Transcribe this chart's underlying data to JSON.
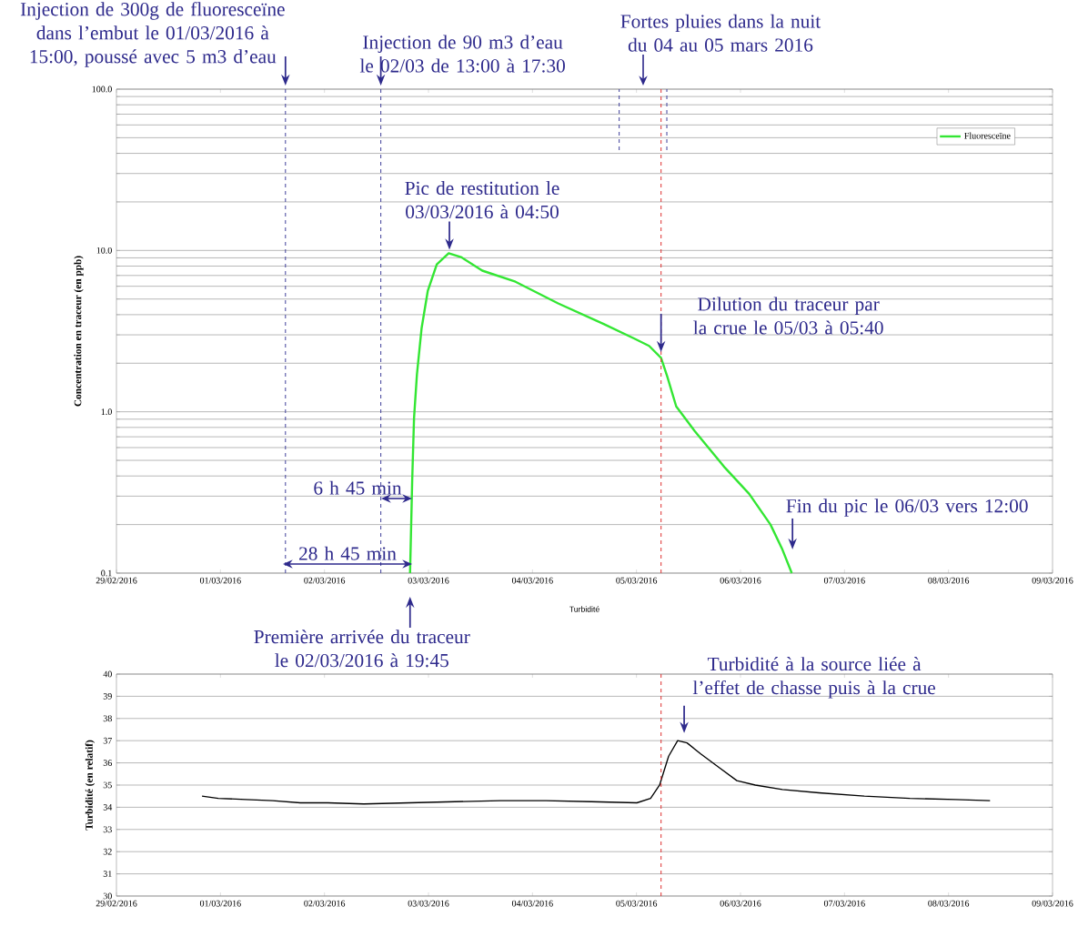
{
  "chart_data": [
    {
      "type": "line",
      "log": "y",
      "xlim": [
        "2016-02-29",
        "2016-03-09"
      ],
      "xticks": [
        {
          "value": "2016-02-29",
          "label": "29/02/2016"
        },
        {
          "value": "2016-03-01",
          "label": "01/03/2016"
        },
        {
          "value": "2016-03-02",
          "label": "02/03/2016"
        },
        {
          "value": "2016-03-03",
          "label": "03/03/2016"
        },
        {
          "value": "2016-03-04",
          "label": "04/03/2016"
        },
        {
          "value": "2016-03-05",
          "label": "05/03/2016"
        },
        {
          "value": "2016-03-06",
          "label": "06/03/2016"
        },
        {
          "value": "2016-03-07",
          "label": "07/03/2016"
        },
        {
          "value": "2016-03-08",
          "label": "08/03/2016"
        },
        {
          "value": "2016-03-09",
          "label": "09/03/2016"
        }
      ],
      "ylim": [
        0.1,
        100
      ],
      "yticks": [
        {
          "value": 0.1,
          "label": "0.1"
        },
        {
          "value": 1,
          "label": "1.0"
        },
        {
          "value": 10,
          "label": "10.0"
        },
        {
          "value": 100,
          "label": "100.0"
        }
      ],
      "ylabel": "Concentration en traceur (en ppb)",
      "grid": "y",
      "legend": "top right",
      "series": [
        {
          "name": "Fluoresceïne",
          "color": "#33e633",
          "x": [
            "2016-03-02T19:45",
            "2016-03-02T20:15",
            "2016-03-02T20:40",
            "2016-03-02T21:20",
            "2016-03-02T22:25",
            "2016-03-02T23:50",
            "2016-03-03T01:55",
            "2016-03-03T04:40",
            "2016-03-03T07:30",
            "2016-03-03T12:25",
            "2016-03-03T20:05",
            "2016-03-04T05:55",
            "2016-03-04T16:25",
            "2016-03-04T23:25",
            "2016-03-05T02:55",
            "2016-03-05T05:40",
            "2016-03-05T07:05",
            "2016-03-05T09:10",
            "2016-03-05T13:25",
            "2016-03-05T20:25",
            "2016-03-06T02:00",
            "2016-03-06T06:55",
            "2016-03-06T09:40",
            "2016-03-06T11:50"
          ],
          "values": [
            0.1,
            0.38,
            0.91,
            1.7,
            3.3,
            5.6,
            8.2,
            9.6,
            9.1,
            7.5,
            6.4,
            4.7,
            3.5,
            2.85,
            2.56,
            2.16,
            1.66,
            1.08,
            0.76,
            0.45,
            0.31,
            0.2,
            0.14,
            0.1
          ]
        }
      ],
      "ref_lines": [
        {
          "axis": "x",
          "value": "2016-03-01T15:00",
          "label": "Injection de 300g de fluoresceïne dans l’embut le 01/03/2016 à 15:00, poussé avec 5 m3 d’eau",
          "color": "#4a4aa0",
          "line_style": "dashed"
        },
        {
          "axis": "x",
          "value": "2016-03-02T13:00",
          "label": "Injection de 90 m3 d’eau le 02/03 de 13:00 à 17:30",
          "color": "#4a4aa0",
          "line_style": "dashed"
        },
        {
          "axis": "x",
          "value": "2016-03-05T05:40",
          "color": "#e03a3a",
          "line_style": "dashed"
        },
        {
          "axis": "x",
          "value": "2016-03-04T20:00",
          "color": "#4a4aa0",
          "line_style": "dashed"
        },
        {
          "axis": "x",
          "value": "2016-03-05T07:00",
          "color": "#4a4aa0",
          "line_style": "dashed"
        }
      ],
      "annotations": [
        {
          "text": "Pic de restitution le 03/03/2016 à 04:50",
          "x": "2016-03-03T04:50",
          "y": 9.6
        },
        {
          "text": "Dilution du traceur par la crue le 05/03 à 05:40",
          "x": "2016-03-05T05:40",
          "y": 2.2
        },
        {
          "text": "Fin du pic le 06/03 vers 12:00",
          "x": "2016-03-06T12:00",
          "y": 0.12
        },
        {
          "text": "Première arrivée du traceur le 02/03/2016 à 19:45",
          "x": "2016-03-02T19:45",
          "y": 0.1
        },
        "Fortes pluies dans la nuit du 04 au 05 mars 2016",
        "28 h 45 min",
        "6 h 45 min"
      ]
    },
    {
      "type": "line",
      "title": "Turbidité",
      "xlim": [
        "2016-02-29",
        "2016-03-09"
      ],
      "xticks": [
        {
          "value": "2016-02-29",
          "label": "29/02/2016"
        },
        {
          "value": "2016-03-01",
          "label": "01/03/2016"
        },
        {
          "value": "2016-03-02",
          "label": "02/03/2016"
        },
        {
          "value": "2016-03-03",
          "label": "03/03/2016"
        },
        {
          "value": "2016-03-04",
          "label": "04/03/2016"
        },
        {
          "value": "2016-03-05",
          "label": "05/03/2016"
        },
        {
          "value": "2016-03-06",
          "label": "06/03/2016"
        },
        {
          "value": "2016-03-07",
          "label": "07/03/2016"
        },
        {
          "value": "2016-03-08",
          "label": "08/03/2016"
        },
        {
          "value": "2016-03-09",
          "label": "09/03/2016"
        }
      ],
      "ylim": [
        30,
        40
      ],
      "yticks": [
        30,
        31,
        32,
        33,
        34,
        35,
        36,
        37,
        38,
        39,
        40
      ],
      "ylabel": "Turbidité (en relatif)",
      "grid": "y",
      "series": [
        {
          "color": "#000000",
          "x": [
            "2016-02-29T19:45",
            "2016-02-29T23:30",
            "2016-03-01T05:50",
            "2016-03-01T12:05",
            "2016-03-01T18:25",
            "2016-03-02T00:45",
            "2016-03-02T09:05",
            "2016-03-02T19:35",
            "2016-03-03T06:05",
            "2016-03-03T16:35",
            "2016-03-04T03:05",
            "2016-03-04T13:35",
            "2016-03-05T00:05",
            "2016-03-05T03:15",
            "2016-03-05T05:20",
            "2016-03-05T07:25",
            "2016-03-05T09:30",
            "2016-03-05T11:40",
            "2016-03-05T14:50",
            "2016-03-05T19:00",
            "2016-03-05T23:10",
            "2016-03-06T03:25",
            "2016-03-06T09:40",
            "2016-03-06T18:05",
            "2016-03-07T04:35",
            "2016-03-07T15:05",
            "2016-03-08T01:35",
            "2016-03-08T09:35"
          ],
          "values": [
            34.5,
            34.4,
            34.35,
            34.3,
            34.2,
            34.2,
            34.15,
            34.2,
            34.25,
            34.3,
            34.3,
            34.25,
            34.2,
            34.4,
            35.0,
            36.3,
            37.0,
            36.9,
            36.4,
            35.8,
            35.2,
            35.0,
            34.8,
            34.65,
            34.5,
            34.4,
            34.35,
            34.3
          ]
        }
      ],
      "ref_lines": [
        {
          "axis": "x",
          "value": "2016-03-05T05:40",
          "color": "#e03a3a",
          "line_style": "dashed"
        }
      ],
      "annotations": [
        {
          "text": "Turbidité à la source liée à l’effet de chasse puis à la crue",
          "x": "2016-03-05T11:00",
          "y": 37.1
        }
      ]
    }
  ]
}
